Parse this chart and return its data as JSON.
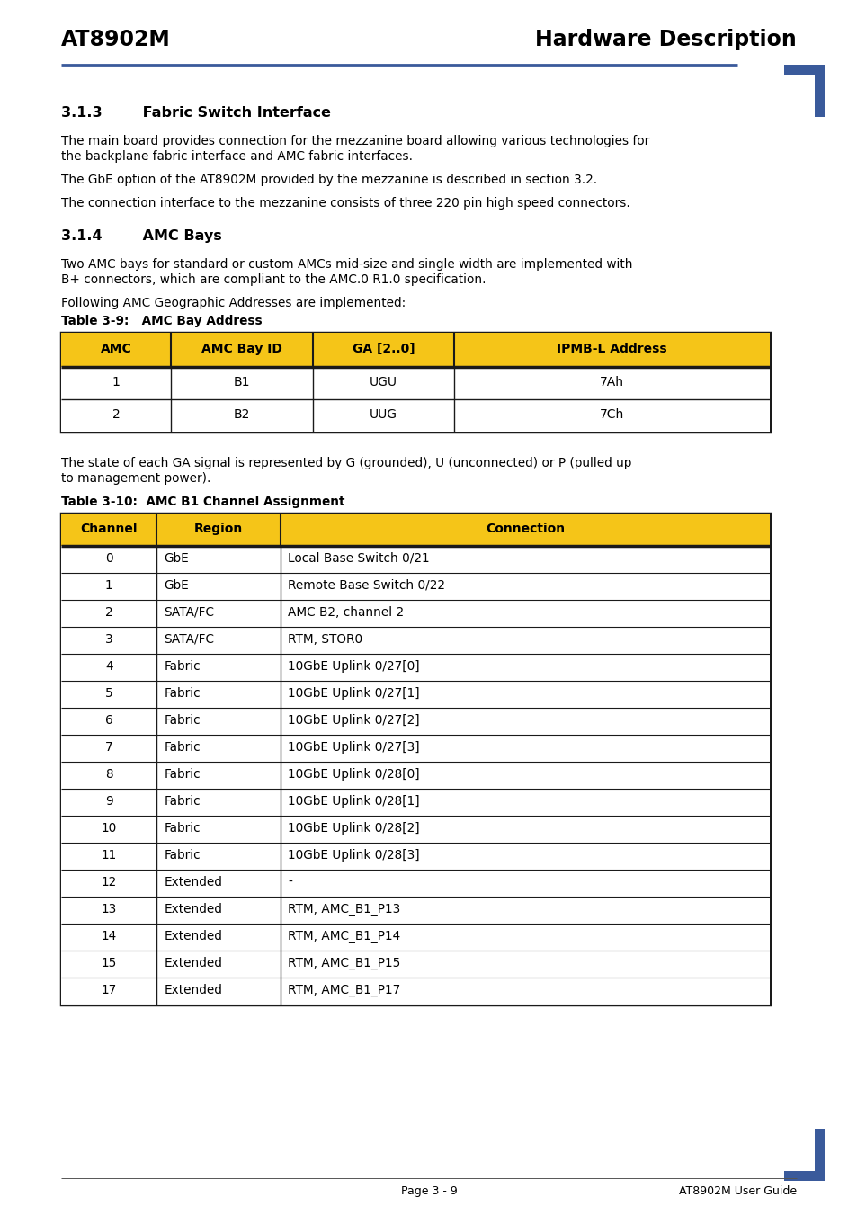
{
  "header_left": "AT8902M",
  "header_right": "Hardware Description",
  "header_line_color": "#3a5a9b",
  "corner_rect_color": "#3a5a9b",
  "section_313_title": "3.1.3        Fabric Switch Interface",
  "section_313_para1_line1": "The main board provides connection for the mezzanine board allowing various technologies for",
  "section_313_para1_line2": "the backplane fabric interface and AMC fabric interfaces.",
  "section_313_para2": "The GbE option of the AT8902M provided by the mezzanine is described in section 3.2.",
  "section_313_para3": "The connection interface to the mezzanine consists of three 220 pin high speed connectors.",
  "section_314_title": "3.1.4        AMC Bays",
  "section_314_para1_line1": "Two AMC bays for standard or custom AMCs mid-size and single width are implemented with",
  "section_314_para1_line2": "B+ connectors, which are compliant to the AMC.0 R1.0 specification.",
  "section_314_para2": "Following AMC Geographic Addresses are implemented:",
  "table1_caption": "Table 3-9:   AMC Bay Address",
  "table1_headers": [
    "AMC",
    "AMC Bay ID",
    "GA [2..0]",
    "IPMB-L Address"
  ],
  "table1_header_bg": "#f5c518",
  "table1_data": [
    [
      "1",
      "B1",
      "UGU",
      "7Ah"
    ],
    [
      "2",
      "B2",
      "UUG",
      "7Ch"
    ]
  ],
  "table1_border_color": "#1a1a1a",
  "between_tables_line1": "The state of each GA signal is represented by G (grounded), U (unconnected) or P (pulled up",
  "between_tables_line2": "to management power).",
  "table2_caption": "Table 3-10:  AMC B1 Channel Assignment",
  "table2_headers": [
    "Channel",
    "Region",
    "Connection"
  ],
  "table2_header_bg": "#f5c518",
  "table2_data": [
    [
      "0",
      "GbE",
      "Local Base Switch 0/21"
    ],
    [
      "1",
      "GbE",
      "Remote Base Switch 0/22"
    ],
    [
      "2",
      "SATA/FC",
      "AMC B2, channel 2"
    ],
    [
      "3",
      "SATA/FC",
      "RTM, STOR0"
    ],
    [
      "4",
      "Fabric",
      "10GbE Uplink 0/27[0]"
    ],
    [
      "5",
      "Fabric",
      "10GbE Uplink 0/27[1]"
    ],
    [
      "6",
      "Fabric",
      "10GbE Uplink 0/27[2]"
    ],
    [
      "7",
      "Fabric",
      "10GbE Uplink 0/27[3]"
    ],
    [
      "8",
      "Fabric",
      "10GbE Uplink 0/28[0]"
    ],
    [
      "9",
      "Fabric",
      "10GbE Uplink 0/28[1]"
    ],
    [
      "10",
      "Fabric",
      "10GbE Uplink 0/28[2]"
    ],
    [
      "11",
      "Fabric",
      "10GbE Uplink 0/28[3]"
    ],
    [
      "12",
      "Extended",
      "-"
    ],
    [
      "13",
      "Extended",
      "RTM, AMC_B1_P13"
    ],
    [
      "14",
      "Extended",
      "RTM, AMC_B1_P14"
    ],
    [
      "15",
      "Extended",
      "RTM, AMC_B1_P15"
    ],
    [
      "17",
      "Extended",
      "RTM, AMC_B1_P17"
    ]
  ],
  "table2_border_color": "#1a1a1a",
  "footer_text": "Page 3 - 9",
  "footer_right": "AT8902M User Guide",
  "bg_color": "#ffffff"
}
